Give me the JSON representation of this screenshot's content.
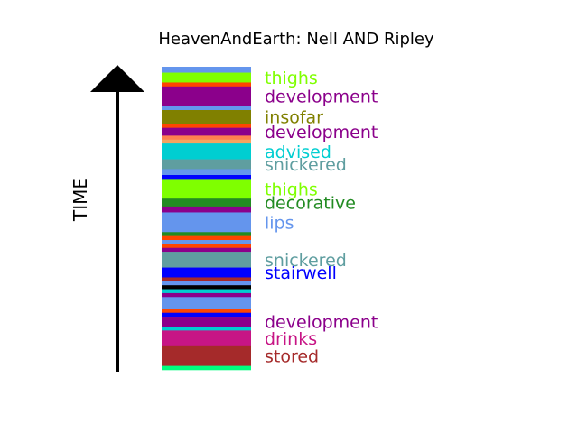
{
  "chart_data": {
    "type": "bar",
    "title": "HeavenAndEarth: Nell AND Ripley",
    "xlabel": "",
    "ylabel": "TIME",
    "grid": false,
    "legend": "none",
    "orientation": "vertical-stacked-timeline",
    "note": "stack listed top (latest) to bottom (earliest)",
    "segments": [
      {
        "color": "#6495ed",
        "duration": 1.5
      },
      {
        "color": "#7fff00",
        "duration": 2.5
      },
      {
        "color": "#ff4500",
        "duration": 1
      },
      {
        "color": "#8b008b",
        "duration": 5
      },
      {
        "color": "#6495ed",
        "duration": 1
      },
      {
        "color": "#808000",
        "duration": 3.5
      },
      {
        "color": "#ff4500",
        "duration": 1
      },
      {
        "color": "#8b008b",
        "duration": 2
      },
      {
        "color": "#ff7f50",
        "duration": 1
      },
      {
        "color": "#f4a460",
        "duration": 1
      },
      {
        "color": "#00ced1",
        "duration": 4
      },
      {
        "color": "#5f9ea0",
        "duration": 2.5
      },
      {
        "color": "#6495ed",
        "duration": 1.5
      },
      {
        "color": "#0000ff",
        "duration": 1
      },
      {
        "color": "#7fff00",
        "duration": 5
      },
      {
        "color": "#228b22",
        "duration": 2
      },
      {
        "color": "#8b008b",
        "duration": 1.5
      },
      {
        "color": "#6495ed",
        "duration": 5
      },
      {
        "color": "#228b22",
        "duration": 1
      },
      {
        "color": "#ff4500",
        "duration": 1
      },
      {
        "color": "#6495ed",
        "duration": 1
      },
      {
        "color": "#ff4500",
        "duration": 1
      },
      {
        "color": "#8b008b",
        "duration": 1
      },
      {
        "color": "#5f9ea0",
        "duration": 4
      },
      {
        "color": "#0000ff",
        "duration": 2.5
      },
      {
        "color": "#a52a2a",
        "duration": 1
      },
      {
        "color": "#6495ed",
        "duration": 1
      },
      {
        "color": "#000000",
        "duration": 1
      },
      {
        "color": "#00ced1",
        "duration": 1
      },
      {
        "color": "#8b008b",
        "duration": 1
      },
      {
        "color": "#6495ed",
        "duration": 3
      },
      {
        "color": "#ff4500",
        "duration": 1
      },
      {
        "color": "#0000ff",
        "duration": 1
      },
      {
        "color": "#8b008b",
        "duration": 2.5
      },
      {
        "color": "#00ced1",
        "duration": 1
      },
      {
        "color": "#c71585",
        "duration": 4
      },
      {
        "color": "#a52a2a",
        "duration": 5
      },
      {
        "color": "#00ff7f",
        "duration": 1
      }
    ],
    "labels": [
      {
        "text": "thighs",
        "color": "#7fff00",
        "segment": 1
      },
      {
        "text": "development",
        "color": "#8b008b",
        "segment": 3
      },
      {
        "text": "insofar",
        "color": "#808000",
        "segment": 5
      },
      {
        "text": "development",
        "color": "#8b008b",
        "segment": 7
      },
      {
        "text": "advised",
        "color": "#00ced1",
        "segment": 10
      },
      {
        "text": "snickered",
        "color": "#5f9ea0",
        "segment": 11
      },
      {
        "text": "thighs",
        "color": "#7fff00",
        "segment": 14
      },
      {
        "text": "decorative",
        "color": "#228b22",
        "segment": 15
      },
      {
        "text": "lips",
        "color": "#6495ed",
        "segment": 17
      },
      {
        "text": "snickered",
        "color": "#5f9ea0",
        "segment": 23
      },
      {
        "text": "stairwell",
        "color": "#0000ff",
        "segment": 24
      },
      {
        "text": "development",
        "color": "#8b008b",
        "segment": 33
      },
      {
        "text": "drinks",
        "color": "#c71585",
        "segment": 35
      },
      {
        "text": "stored",
        "color": "#a52a2a",
        "segment": 36
      }
    ]
  }
}
